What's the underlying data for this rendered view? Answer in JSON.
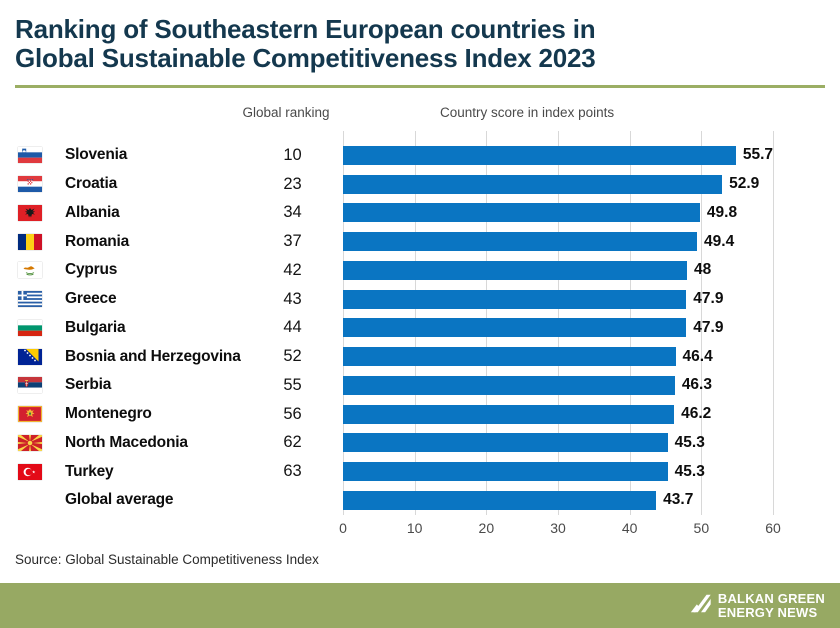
{
  "header": {
    "title_lines": [
      "Ranking of Southeastern European countries in",
      "Global Sustainable Competitiveness Index 2023"
    ]
  },
  "columns": {
    "ranking_label": "Global ranking",
    "score_label": "Country score in index points"
  },
  "chart_data": {
    "type": "bar",
    "orientation": "horizontal",
    "title": "Ranking of Southeastern European countries in Global Sustainable Competitiveness Index 2023",
    "xlabel": "",
    "ylabel": "",
    "xlim": [
      0,
      60
    ],
    "x_ticks": [
      "0",
      "10",
      "20",
      "30",
      "40",
      "50",
      "60"
    ],
    "grid": "vertical-on",
    "legend": "none",
    "bar_color": "#0a75c2",
    "categories": [
      "Slovenia",
      "Croatia",
      "Albania",
      "Romania",
      "Cyprus",
      "Greece",
      "Bulgaria",
      "Bosnia and Herzegovina",
      "Serbia",
      "Montenegro",
      "North Macedonia",
      "Turkey",
      "Global average"
    ],
    "values": [
      55.7,
      52.9,
      49.8,
      49.4,
      48,
      47.9,
      47.9,
      46.4,
      46.3,
      46.2,
      45.3,
      45.3,
      43.7
    ],
    "rows": [
      {
        "country": "Slovenia",
        "rank": "10",
        "score": 55.7,
        "score_label": "55.7",
        "flag": "slovenia"
      },
      {
        "country": "Croatia",
        "rank": "23",
        "score": 52.9,
        "score_label": "52.9",
        "flag": "croatia"
      },
      {
        "country": "Albania",
        "rank": "34",
        "score": 49.8,
        "score_label": "49.8",
        "flag": "albania"
      },
      {
        "country": "Romania",
        "rank": "37",
        "score": 49.4,
        "score_label": "49.4",
        "flag": "romania"
      },
      {
        "country": "Cyprus",
        "rank": "42",
        "score": 48,
        "score_label": "48",
        "flag": "cyprus"
      },
      {
        "country": "Greece",
        "rank": "43",
        "score": 47.9,
        "score_label": "47.9",
        "flag": "greece"
      },
      {
        "country": "Bulgaria",
        "rank": "44",
        "score": 47.9,
        "score_label": "47.9",
        "flag": "bulgaria"
      },
      {
        "country": "Bosnia and Herzegovina",
        "rank": "52",
        "score": 46.4,
        "score_label": "46.4",
        "flag": "bosnia-and-herzegovina"
      },
      {
        "country": "Serbia",
        "rank": "55",
        "score": 46.3,
        "score_label": "46.3",
        "flag": "serbia"
      },
      {
        "country": "Montenegro",
        "rank": "56",
        "score": 46.2,
        "score_label": "46.2",
        "flag": "montenegro"
      },
      {
        "country": "North Macedonia",
        "rank": "62",
        "score": 45.3,
        "score_label": "45.3",
        "flag": "north-macedonia"
      },
      {
        "country": "Turkey",
        "rank": "63",
        "score": 45.3,
        "score_label": "45.3",
        "flag": "turkey"
      },
      {
        "country": "Global average",
        "rank": "",
        "score": 43.7,
        "score_label": "43.7",
        "flag": ""
      }
    ]
  },
  "source": "Source: Global Sustainable Competitiveness Index",
  "footer": {
    "brand_line1": "BALKAN GREEN",
    "brand_line2": "ENERGY NEWS",
    "bg_color": "#97a963"
  },
  "colors": {
    "title": "#14384e",
    "divider": "#9bae64",
    "bar": "#0a75c2",
    "gridline": "#d8d8d8",
    "tick_text": "#4a4a4a"
  }
}
